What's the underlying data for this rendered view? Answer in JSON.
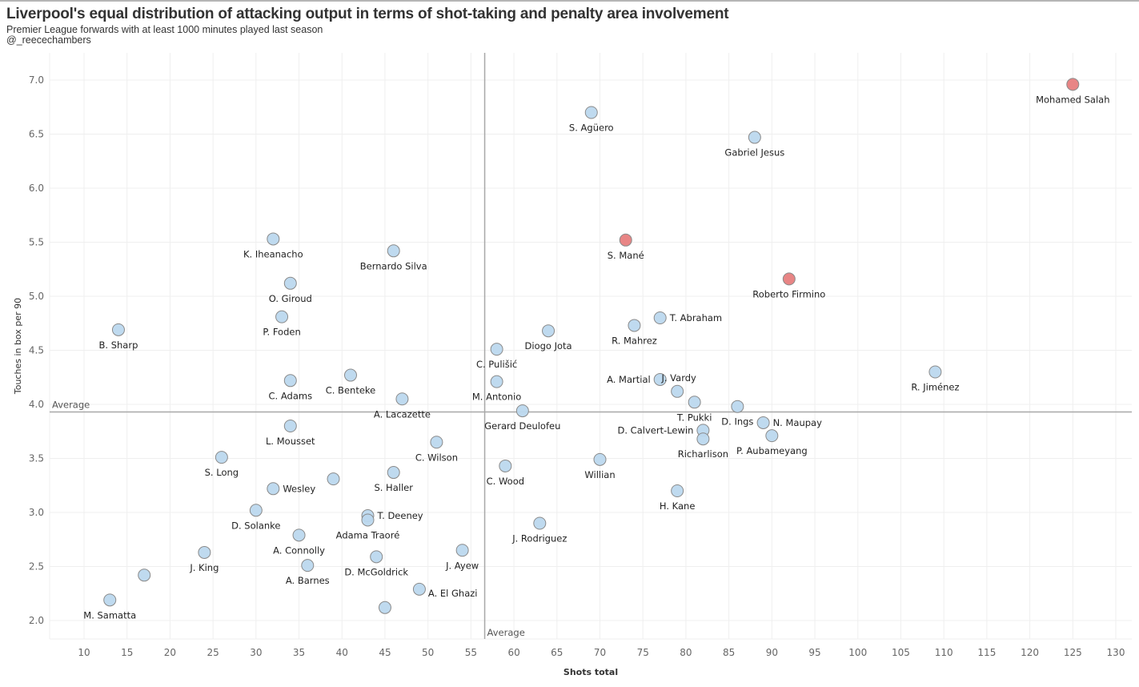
{
  "header": {
    "title": "Liverpool's equal distribution of attacking output in terms of shot-taking and penalty area involvement",
    "subtitle": "Premier League forwards with at least 1000 minutes played last season",
    "credit": "@_reecechambers"
  },
  "colors": {
    "default_point": "#bcd8ee",
    "liverpool_point": "#e88585",
    "point_stroke": "#8a8a8a",
    "reference_line": "#a8a8a8",
    "grid": "#efefef"
  },
  "chart_data": {
    "type": "scatter",
    "title": "Liverpool's equal distribution of attacking output in terms of shot-taking and penalty area involvement",
    "subtitle": "Premier League forwards with at least 1000 minutes played last season",
    "xlabel": "Shots total",
    "ylabel": "Touches in box per 90",
    "xlim": [
      6,
      131
    ],
    "ylim": [
      1.82,
      7.25
    ],
    "xticks": [
      10,
      15,
      20,
      25,
      30,
      35,
      40,
      45,
      50,
      55,
      60,
      65,
      70,
      75,
      80,
      85,
      90,
      95,
      100,
      105,
      110,
      115,
      120,
      125,
      130
    ],
    "yticks": [
      2.0,
      2.5,
      3.0,
      3.5,
      4.0,
      4.5,
      5.0,
      5.5,
      6.0,
      6.5,
      7.0
    ],
    "grid": true,
    "legend": "none",
    "reference_lines": [
      {
        "axis": "x",
        "value": 56.6,
        "label": "Average"
      },
      {
        "axis": "y",
        "value": 3.93,
        "label": "Average"
      }
    ],
    "points": [
      {
        "name": "Mohamed Salah",
        "x": 125,
        "y": 6.96,
        "team": "Liverpool",
        "label_pos": "below"
      },
      {
        "name": "S. Agüero",
        "x": 69,
        "y": 6.7,
        "label_pos": "below"
      },
      {
        "name": "Gabriel Jesus",
        "x": 88,
        "y": 6.47,
        "label_pos": "below"
      },
      {
        "name": "K. Iheanacho",
        "x": 32,
        "y": 5.53,
        "label_pos": "below"
      },
      {
        "name": "S. Mané",
        "x": 73,
        "y": 5.52,
        "team": "Liverpool",
        "label_pos": "below"
      },
      {
        "name": "Bernardo Silva",
        "x": 46,
        "y": 5.42,
        "label_pos": "below"
      },
      {
        "name": "Roberto Firmino",
        "x": 92,
        "y": 5.16,
        "team": "Liverpool",
        "label_pos": "below"
      },
      {
        "name": "O. Giroud",
        "x": 34,
        "y": 5.12,
        "label_pos": "below"
      },
      {
        "name": "P. Foden",
        "x": 33,
        "y": 4.81,
        "label_pos": "below"
      },
      {
        "name": "T. Abraham",
        "x": 77,
        "y": 4.8,
        "label_pos": "right"
      },
      {
        "name": "R. Mahrez",
        "x": 74,
        "y": 4.73,
        "label_pos": "below"
      },
      {
        "name": "B. Sharp",
        "x": 14,
        "y": 4.69,
        "label_pos": "below"
      },
      {
        "name": "Diogo Jota",
        "x": 64,
        "y": 4.68,
        "label_pos": "below"
      },
      {
        "name": "C. Pulišić",
        "x": 58,
        "y": 4.51,
        "label_pos": "below"
      },
      {
        "name": "R. Jiménez",
        "x": 109,
        "y": 4.3,
        "label_pos": "below"
      },
      {
        "name": "C. Benteke",
        "x": 41,
        "y": 4.27,
        "label_pos": "below"
      },
      {
        "name": "A. Martial",
        "x": 77,
        "y": 4.23,
        "label_pos": "left"
      },
      {
        "name": "C. Adams",
        "x": 34,
        "y": 4.22,
        "label_pos": "below"
      },
      {
        "name": "M. Antonio",
        "x": 58,
        "y": 4.21,
        "label_pos": "below"
      },
      {
        "name": "J. Vardy",
        "x": 79,
        "y": 4.12,
        "label_pos": "above"
      },
      {
        "name": "A. Lacazette",
        "x": 47,
        "y": 4.05,
        "label_pos": "below"
      },
      {
        "name": "T. Pukki",
        "x": 81,
        "y": 4.02,
        "label_pos": "below"
      },
      {
        "name": "D. Ings",
        "x": 86,
        "y": 3.98,
        "label_pos": "below"
      },
      {
        "name": "Gerard Deulofeu",
        "x": 61,
        "y": 3.94,
        "label_pos": "below"
      },
      {
        "name": "N. Maupay",
        "x": 89,
        "y": 3.83,
        "label_pos": "right"
      },
      {
        "name": "L. Mousset",
        "x": 34,
        "y": 3.8,
        "label_pos": "below"
      },
      {
        "name": "D. Calvert-Lewin",
        "x": 82,
        "y": 3.76,
        "label_pos": "left"
      },
      {
        "name": "P. Aubameyang",
        "x": 90,
        "y": 3.71,
        "label_pos": "below"
      },
      {
        "name": "Richarlison",
        "x": 82,
        "y": 3.68,
        "label_pos": "below"
      },
      {
        "name": "C. Wilson",
        "x": 51,
        "y": 3.65,
        "label_pos": "below"
      },
      {
        "name": "S. Long",
        "x": 26,
        "y": 3.51,
        "label_pos": "below"
      },
      {
        "name": "Willian",
        "x": 70,
        "y": 3.49,
        "label_pos": "below"
      },
      {
        "name": "C. Wood",
        "x": 59,
        "y": 3.43,
        "label_pos": "below"
      },
      {
        "name": "S. Haller",
        "x": 46,
        "y": 3.37,
        "label_pos": "below"
      },
      {
        "name": "",
        "x": 39,
        "y": 3.31,
        "label_pos": "none"
      },
      {
        "name": "Wesley",
        "x": 32,
        "y": 3.22,
        "label_pos": "right"
      },
      {
        "name": "H. Kane",
        "x": 79,
        "y": 3.2,
        "label_pos": "below"
      },
      {
        "name": "D. Solanke",
        "x": 30,
        "y": 3.02,
        "label_pos": "below"
      },
      {
        "name": "T. Deeney",
        "x": 43,
        "y": 2.97,
        "label_pos": "right"
      },
      {
        "name": "Adama Traoré",
        "x": 43,
        "y": 2.93,
        "label_pos": "below"
      },
      {
        "name": "J. Rodriguez",
        "x": 63,
        "y": 2.9,
        "label_pos": "below"
      },
      {
        "name": "A. Connolly",
        "x": 35,
        "y": 2.79,
        "label_pos": "below"
      },
      {
        "name": "J. Ayew",
        "x": 54,
        "y": 2.65,
        "label_pos": "below"
      },
      {
        "name": "J. King",
        "x": 24,
        "y": 2.63,
        "label_pos": "below"
      },
      {
        "name": "D. McGoldrick",
        "x": 44,
        "y": 2.59,
        "label_pos": "below"
      },
      {
        "name": "A. Barnes",
        "x": 36,
        "y": 2.51,
        "label_pos": "below"
      },
      {
        "name": "",
        "x": 17,
        "y": 2.42,
        "label_pos": "none"
      },
      {
        "name": "A. El Ghazi",
        "x": 49,
        "y": 2.29,
        "label_pos": "right-below"
      },
      {
        "name": "M. Samatta",
        "x": 13,
        "y": 2.19,
        "label_pos": "below"
      },
      {
        "name": "",
        "x": 45,
        "y": 2.12,
        "label_pos": "none"
      }
    ]
  }
}
